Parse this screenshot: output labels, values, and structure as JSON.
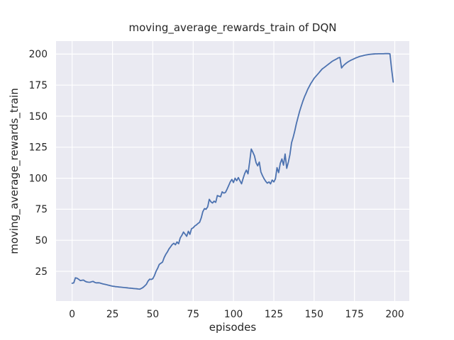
{
  "chart_data": {
    "type": "line",
    "title": "moving_average_rewards_train of DQN",
    "xlabel": "episodes",
    "ylabel": "moving_average_rewards_train",
    "xticks": [
      0,
      25,
      50,
      75,
      100,
      125,
      150,
      175,
      200
    ],
    "yticks": [
      25,
      50,
      75,
      100,
      125,
      150,
      175,
      200
    ],
    "xlim": [
      -10,
      209
    ],
    "ylim": [
      1,
      210.5
    ],
    "grid": true,
    "legend": false,
    "style": "seaborn-darkgrid",
    "colors": {
      "line": "#4C72B0",
      "plot_bg": "#EAEAF2",
      "grid": "#FFFFFF",
      "text": "#262626",
      "fig_bg": "#FFFFFF"
    },
    "series": [
      {
        "name": "moving_average_rewards_train",
        "x": [
          0,
          1,
          2,
          3,
          4,
          5,
          6,
          7,
          8,
          9,
          10,
          11,
          12,
          13,
          14,
          15,
          16,
          17,
          18,
          19,
          20,
          21,
          22,
          23,
          24,
          25,
          26,
          27,
          28,
          29,
          30,
          31,
          32,
          33,
          34,
          35,
          36,
          37,
          38,
          39,
          40,
          41,
          42,
          43,
          44,
          45,
          46,
          47,
          48,
          49,
          50,
          51,
          52,
          53,
          54,
          55,
          56,
          57,
          58,
          59,
          60,
          61,
          62,
          63,
          64,
          65,
          66,
          67,
          68,
          69,
          70,
          71,
          72,
          73,
          74,
          75,
          76,
          77,
          78,
          79,
          80,
          81,
          82,
          83,
          84,
          85,
          86,
          87,
          88,
          89,
          90,
          91,
          92,
          93,
          94,
          95,
          96,
          97,
          98,
          99,
          100,
          101,
          102,
          103,
          104,
          105,
          106,
          107,
          108,
          109,
          110,
          111,
          112,
          113,
          114,
          115,
          116,
          117,
          118,
          119,
          120,
          121,
          122,
          123,
          124,
          125,
          126,
          127,
          128,
          129,
          130,
          131,
          132,
          133,
          134,
          135,
          136,
          137,
          138,
          139,
          140,
          141,
          142,
          143,
          144,
          145,
          146,
          147,
          148,
          149,
          150,
          151,
          152,
          153,
          154,
          155,
          156,
          157,
          158,
          159,
          160,
          161,
          162,
          163,
          164,
          165,
          166,
          167,
          168,
          169,
          170,
          171,
          172,
          173,
          174,
          175,
          176,
          177,
          178,
          179,
          180,
          181,
          182,
          183,
          184,
          185,
          186,
          187,
          188,
          189,
          190,
          191,
          192,
          193,
          194,
          195,
          196,
          197,
          198,
          199
        ],
        "y": [
          15.3,
          15.6,
          19.7,
          19.4,
          18.6,
          17.5,
          17.7,
          17.9,
          17.0,
          16.4,
          16.2,
          16.1,
          16.5,
          16.8,
          16.0,
          15.6,
          15.7,
          15.6,
          15.2,
          14.9,
          14.6,
          14.3,
          13.9,
          13.6,
          13.3,
          13.0,
          12.8,
          12.6,
          12.5,
          12.3,
          12.2,
          12.1,
          11.9,
          11.8,
          11.7,
          11.5,
          11.4,
          11.3,
          11.1,
          11.0,
          10.9,
          10.7,
          10.6,
          11.2,
          12.0,
          13.2,
          14.5,
          17.0,
          18.6,
          18.4,
          19.0,
          21.5,
          25.0,
          27.5,
          30.5,
          31.5,
          32.4,
          36.0,
          38.5,
          40.5,
          43.0,
          44.7,
          46.5,
          47.6,
          46.3,
          48.6,
          47.2,
          51.9,
          54.0,
          56.6,
          55.0,
          53.2,
          57.2,
          54.8,
          59.3,
          60.0,
          61.5,
          62.3,
          63.5,
          64.5,
          68.0,
          73.0,
          75.5,
          75.0,
          77.0,
          83.0,
          81.0,
          80.0,
          81.5,
          80.5,
          86.0,
          85.5,
          85.0,
          89.0,
          88.0,
          88.5,
          91.0,
          94.0,
          97.0,
          99.0,
          96.5,
          100.0,
          98.0,
          100.5,
          98.0,
          95.5,
          100.0,
          104.0,
          106.5,
          103.5,
          113.0,
          123.5,
          121.0,
          118.0,
          112.5,
          110.0,
          113.0,
          105.0,
          102.0,
          99.5,
          97.5,
          96.0,
          97.0,
          95.5,
          98.5,
          97.0,
          99.5,
          108.5,
          104.5,
          112.0,
          115.5,
          110.5,
          119.5,
          108.0,
          113.0,
          119.0,
          128.5,
          133.0,
          138.0,
          144.0,
          149.0,
          154.0,
          158.0,
          162.0,
          165.5,
          168.5,
          171.5,
          174.0,
          176.5,
          178.5,
          180.5,
          182.0,
          183.5,
          185.0,
          186.5,
          188.0,
          189.0,
          190.0,
          191.0,
          192.0,
          193.0,
          194.0,
          194.8,
          195.5,
          196.2,
          197.0,
          197.3,
          188.8,
          190.5,
          191.7,
          192.8,
          193.7,
          194.5,
          195.2,
          195.8,
          196.4,
          197.0,
          197.5,
          198.0,
          198.4,
          198.7,
          199.0,
          199.3,
          199.5,
          199.7,
          199.9,
          200.0,
          200.1,
          200.2,
          200.2,
          200.3,
          200.3,
          200.3,
          200.3,
          200.4,
          200.4,
          200.4,
          200.2,
          188.0,
          177.5
        ]
      }
    ]
  }
}
